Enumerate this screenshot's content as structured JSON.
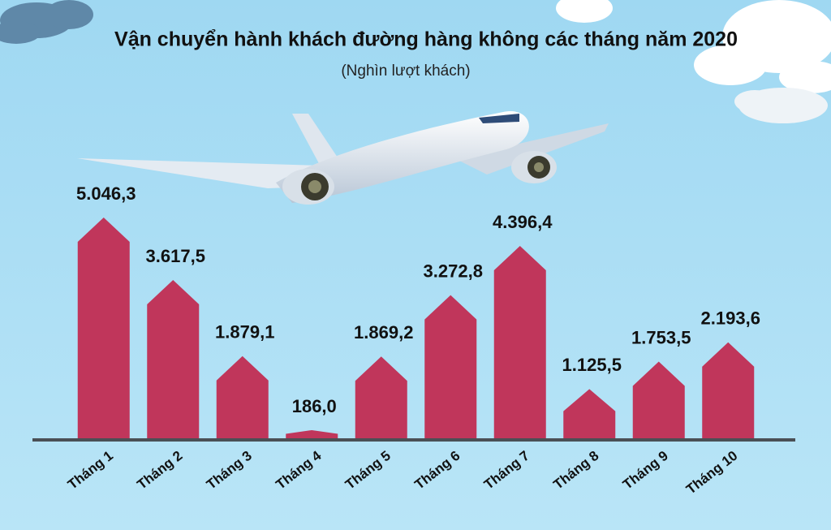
{
  "chart_data": {
    "type": "bar",
    "title": "Vận chuyển hành khách đường hàng không các tháng năm 2020",
    "subtitle": "(Nghìn lượt khách)",
    "categories": [
      "Tháng 1",
      "Tháng 2",
      "Tháng 3",
      "Tháng 4",
      "Tháng 5",
      "Tháng 6",
      "Tháng 7",
      "Tháng 8",
      "Tháng 9",
      "Tháng 10"
    ],
    "values": [
      5046.3,
      3617.5,
      1879.1,
      186.0,
      1869.2,
      3272.8,
      4396.4,
      1125.5,
      1753.5,
      2193.6
    ],
    "value_labels": [
      "5.046,3",
      "3.617,5",
      "1.879,1",
      "186,0",
      "1.869,2",
      "3.272,8",
      "4.396,4",
      "1.125,5",
      "1.753,5",
      "2.193,6"
    ],
    "color": "#c0365b"
  }
}
